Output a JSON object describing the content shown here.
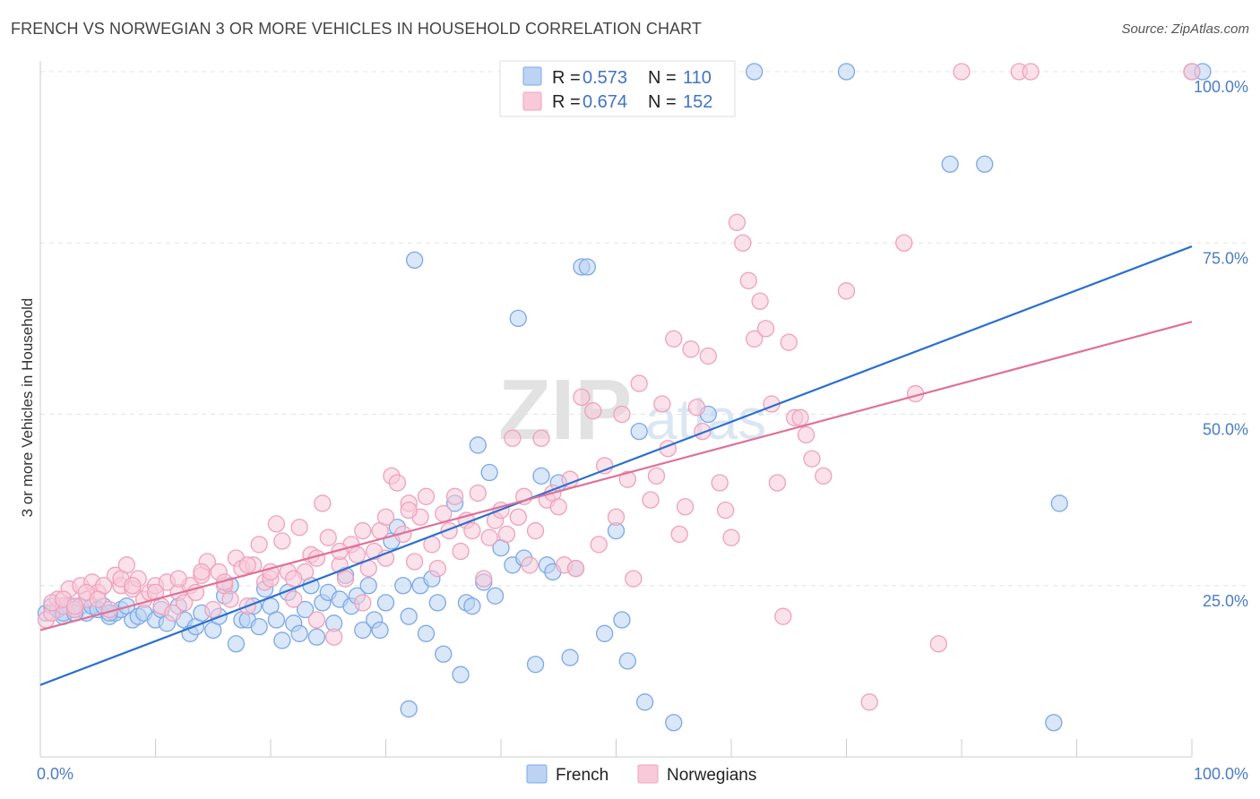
{
  "title": "FRENCH VS NORWEGIAN 3 OR MORE VEHICLES IN HOUSEHOLD CORRELATION CHART",
  "source": "Source: ZipAtlas.com",
  "watermark": {
    "zip": "ZIP",
    "atlas": "atlas"
  },
  "chart_data": {
    "type": "scatter",
    "ylabel": "3 or more Vehicles in Household",
    "xlabel": "",
    "x_tick_labels": [
      "0.0%",
      "100.0%"
    ],
    "y_tick_labels": [
      "25.0%",
      "50.0%",
      "75.0%",
      "100.0%"
    ],
    "y_ticks": [
      25,
      50,
      75,
      100
    ],
    "xlim": [
      0,
      100
    ],
    "ylim": [
      0,
      100
    ],
    "grid": "horizontal dashed",
    "legend": {
      "placement": "top-center",
      "entries": [
        {
          "r_label": "R =",
          "r": "0.573",
          "n_label": "N =",
          "n": "110"
        },
        {
          "r_label": "R =",
          "r": "0.674",
          "n_label": "N =",
          "n": "152"
        }
      ]
    },
    "series": [
      {
        "name": "French",
        "color": "#7aa8e8",
        "fill": "#bcd3f3",
        "line_color": "#2b6fcf",
        "trend": {
          "x0": 0,
          "y0": 10.5,
          "x1": 100,
          "y1": 74.5
        },
        "points": [
          [
            0.5,
            21
          ],
          [
            1,
            22
          ],
          [
            1.5,
            21.5
          ],
          [
            2,
            20.5
          ],
          [
            2.5,
            22
          ],
          [
            3,
            21.5
          ],
          [
            3.5,
            22
          ],
          [
            4,
            21
          ],
          [
            4.5,
            22
          ],
          [
            5,
            21.5
          ],
          [
            5.5,
            22
          ],
          [
            6,
            20.5
          ],
          [
            6.5,
            21
          ],
          [
            7,
            21.5
          ],
          [
            7.5,
            22
          ],
          [
            8,
            20
          ],
          [
            8.5,
            20.5
          ],
          [
            9,
            21
          ],
          [
            10,
            20
          ],
          [
            10.5,
            21.5
          ],
          [
            11,
            19.5
          ],
          [
            12,
            22
          ],
          [
            12.5,
            20
          ],
          [
            13,
            18
          ],
          [
            13.5,
            19
          ],
          [
            14,
            21
          ],
          [
            15,
            18.5
          ],
          [
            15.5,
            20.5
          ],
          [
            16,
            23.5
          ],
          [
            16.5,
            25
          ],
          [
            17,
            16.5
          ],
          [
            17.5,
            20
          ],
          [
            18,
            20
          ],
          [
            18.5,
            22
          ],
          [
            19,
            19
          ],
          [
            19.5,
            24.5
          ],
          [
            20,
            22
          ],
          [
            20.5,
            20
          ],
          [
            21,
            17
          ],
          [
            21.5,
            24
          ],
          [
            22,
            19.5
          ],
          [
            22.5,
            18
          ],
          [
            23,
            21.5
          ],
          [
            23.5,
            25
          ],
          [
            24,
            17.5
          ],
          [
            24.5,
            22.5
          ],
          [
            25,
            24
          ],
          [
            25.5,
            19.5
          ],
          [
            26,
            23
          ],
          [
            26.5,
            26.5
          ],
          [
            27,
            22
          ],
          [
            27.5,
            23.5
          ],
          [
            28,
            18.5
          ],
          [
            28.5,
            25
          ],
          [
            29,
            20
          ],
          [
            29.5,
            18.5
          ],
          [
            30,
            22.5
          ],
          [
            30.5,
            31.5
          ],
          [
            31,
            33.5
          ],
          [
            31.5,
            25
          ],
          [
            32,
            20.5
          ],
          [
            32.5,
            72.5
          ],
          [
            33,
            25
          ],
          [
            33.5,
            18
          ],
          [
            34,
            26
          ],
          [
            34.5,
            22.5
          ],
          [
            35,
            15
          ],
          [
            36,
            37
          ],
          [
            36.5,
            12
          ],
          [
            37,
            22.5
          ],
          [
            37.5,
            22
          ],
          [
            38,
            45.5
          ],
          [
            38.5,
            25.5
          ],
          [
            39,
            41.5
          ],
          [
            39.5,
            23.5
          ],
          [
            40,
            30.5
          ],
          [
            41,
            28
          ],
          [
            41.5,
            64
          ],
          [
            42,
            29
          ],
          [
            43,
            13.5
          ],
          [
            43.5,
            41
          ],
          [
            44,
            28
          ],
          [
            44.5,
            27
          ],
          [
            45,
            40
          ],
          [
            46,
            14.5
          ],
          [
            46.5,
            27.5
          ],
          [
            47,
            71.5
          ],
          [
            47.5,
            71.5
          ],
          [
            49,
            18
          ],
          [
            50,
            33
          ],
          [
            50.5,
            20
          ],
          [
            51,
            14
          ],
          [
            52,
            47.5
          ],
          [
            52.5,
            8
          ],
          [
            55,
            5
          ],
          [
            58,
            50
          ],
          [
            62,
            100
          ],
          [
            70,
            100
          ],
          [
            79,
            86.5
          ],
          [
            82,
            86.5
          ],
          [
            88,
            5
          ],
          [
            88.5,
            37
          ],
          [
            100,
            100
          ],
          [
            101,
            100
          ],
          [
            2,
            21
          ],
          [
            3,
            21
          ],
          [
            6,
            21
          ],
          [
            32,
            7
          ]
        ]
      },
      {
        "name": "Norwegians",
        "color": "#f0a0ba",
        "fill": "#f8cad9",
        "line_color": "#e0709a",
        "trend": {
          "x0": 0,
          "y0": 18.5,
          "x1": 100,
          "y1": 63.5
        },
        "points": [
          [
            0.5,
            20
          ],
          [
            1,
            21
          ],
          [
            1.5,
            23
          ],
          [
            2,
            22
          ],
          [
            2.5,
            24.5
          ],
          [
            3,
            21.5
          ],
          [
            3.5,
            25
          ],
          [
            4,
            23
          ],
          [
            4.5,
            25.5
          ],
          [
            5,
            24
          ],
          [
            5.5,
            25
          ],
          [
            6,
            21.5
          ],
          [
            6.5,
            26.5
          ],
          [
            7,
            25
          ],
          [
            7.5,
            28
          ],
          [
            8,
            24.5
          ],
          [
            8.5,
            26
          ],
          [
            9,
            23
          ],
          [
            9.5,
            24
          ],
          [
            10,
            25
          ],
          [
            10.5,
            22
          ],
          [
            11,
            25.5
          ],
          [
            11.5,
            21
          ],
          [
            12,
            24
          ],
          [
            12.5,
            22.5
          ],
          [
            13,
            25
          ],
          [
            13.5,
            24
          ],
          [
            14,
            26.5
          ],
          [
            14.5,
            28.5
          ],
          [
            15,
            21.5
          ],
          [
            15.5,
            27
          ],
          [
            16,
            25
          ],
          [
            16.5,
            23
          ],
          [
            17,
            29
          ],
          [
            17.5,
            27.5
          ],
          [
            18,
            22
          ],
          [
            18.5,
            28
          ],
          [
            19,
            31
          ],
          [
            19.5,
            25.5
          ],
          [
            20,
            26
          ],
          [
            20.5,
            34
          ],
          [
            21,
            31.5
          ],
          [
            21.5,
            27
          ],
          [
            22,
            23
          ],
          [
            22.5,
            33.5
          ],
          [
            23,
            27
          ],
          [
            23.5,
            29.5
          ],
          [
            24,
            20
          ],
          [
            24.5,
            37
          ],
          [
            25,
            32
          ],
          [
            25.5,
            17.5
          ],
          [
            26,
            28
          ],
          [
            26.5,
            26
          ],
          [
            27,
            31
          ],
          [
            27.5,
            29.5
          ],
          [
            28,
            22.5
          ],
          [
            28.5,
            27.5
          ],
          [
            29,
            30
          ],
          [
            29.5,
            33
          ],
          [
            30,
            29
          ],
          [
            30.5,
            41
          ],
          [
            31,
            40
          ],
          [
            31.5,
            32.5
          ],
          [
            32,
            37
          ],
          [
            32.5,
            28.5
          ],
          [
            33,
            35
          ],
          [
            33.5,
            38
          ],
          [
            34,
            31
          ],
          [
            34.5,
            27.5
          ],
          [
            35,
            35.5
          ],
          [
            35.5,
            33
          ],
          [
            36,
            38
          ],
          [
            36.5,
            30
          ],
          [
            37,
            34.5
          ],
          [
            37.5,
            33
          ],
          [
            38,
            38.5
          ],
          [
            38.5,
            26
          ],
          [
            39,
            32
          ],
          [
            39.5,
            34.5
          ],
          [
            40,
            36
          ],
          [
            40.5,
            32.5
          ],
          [
            41,
            46.5
          ],
          [
            41.5,
            35
          ],
          [
            42,
            38
          ],
          [
            42.5,
            28
          ],
          [
            43,
            33
          ],
          [
            43.5,
            46.5
          ],
          [
            44,
            37.5
          ],
          [
            44.5,
            38.5
          ],
          [
            45,
            36.5
          ],
          [
            45.5,
            28
          ],
          [
            46,
            40.5
          ],
          [
            46.5,
            27.5
          ],
          [
            47,
            52.5
          ],
          [
            48,
            50.5
          ],
          [
            48.5,
            31
          ],
          [
            49,
            42.5
          ],
          [
            50,
            35
          ],
          [
            50.5,
            50
          ],
          [
            51,
            40.5
          ],
          [
            51.5,
            26
          ],
          [
            52,
            54.5
          ],
          [
            53,
            37.5
          ],
          [
            53.5,
            41
          ],
          [
            54,
            51.5
          ],
          [
            54.5,
            45
          ],
          [
            55,
            61
          ],
          [
            55.5,
            32.5
          ],
          [
            56,
            36.5
          ],
          [
            56.5,
            59.5
          ],
          [
            57,
            51
          ],
          [
            57.5,
            47.5
          ],
          [
            58,
            58.5
          ],
          [
            59,
            40
          ],
          [
            59.5,
            36
          ],
          [
            60,
            32
          ],
          [
            60.5,
            78
          ],
          [
            61,
            75
          ],
          [
            61.5,
            69.5
          ],
          [
            62,
            61
          ],
          [
            62.5,
            66.5
          ],
          [
            63,
            62.5
          ],
          [
            63.5,
            51.5
          ],
          [
            64,
            40
          ],
          [
            64.5,
            20.5
          ],
          [
            65,
            60.5
          ],
          [
            65.5,
            49.5
          ],
          [
            66,
            49.5
          ],
          [
            66.5,
            47
          ],
          [
            67,
            43.5
          ],
          [
            68,
            41
          ],
          [
            70,
            68
          ],
          [
            72,
            8
          ],
          [
            75,
            75
          ],
          [
            76,
            53
          ],
          [
            78,
            16.5
          ],
          [
            80,
            100
          ],
          [
            85,
            100
          ],
          [
            86,
            100
          ],
          [
            100,
            100
          ],
          [
            1,
            22.5
          ],
          [
            2,
            23
          ],
          [
            3,
            22
          ],
          [
            4,
            24
          ],
          [
            5,
            23
          ],
          [
            7,
            26
          ],
          [
            8,
            25
          ],
          [
            10,
            24
          ],
          [
            12,
            26
          ],
          [
            14,
            27
          ],
          [
            16,
            25.5
          ],
          [
            18,
            28
          ],
          [
            20,
            27
          ],
          [
            22,
            26
          ],
          [
            24,
            29
          ],
          [
            26,
            30
          ],
          [
            28,
            33
          ],
          [
            30,
            35
          ],
          [
            32,
            36
          ]
        ]
      }
    ]
  },
  "bottom_legend": [
    "French",
    "Norwegians"
  ]
}
